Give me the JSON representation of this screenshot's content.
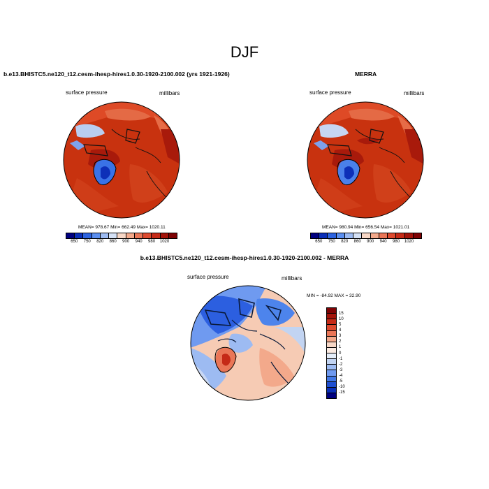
{
  "figure": {
    "title": "DJF"
  },
  "panels": {
    "model": {
      "title": "b.e13.BHISTC5.ne120_t12.cesm-ihesp-hires1.0.30-1920-2100.002 (yrs 1921-1926)",
      "left_label": "surface pressure",
      "right_label": "millibars",
      "stats": "MEAN= 978.67  Min= 662.49  Max= 1020.11"
    },
    "obs": {
      "title": "MERRA",
      "left_label": "surface pressure",
      "right_label": "millibars",
      "stats": "MEAN= 980.94  Min= 656.54  Max= 1021.01"
    },
    "diff": {
      "title": "b.e13.BHISTC5.ne120_t12.cesm-ihesp-hires1.0.30-1920-2100.002 - MERRA",
      "left_label": "surface pressure",
      "right_label": "millibars",
      "stats": "MIN = -84.92 MAX =  32.90"
    }
  },
  "colorbars": {
    "absolute": {
      "ticks": [
        "650",
        "750",
        "820",
        "860",
        "900",
        "940",
        "980",
        "1020"
      ],
      "colors": [
        "#00007f",
        "#0a2fb8",
        "#2c63e0",
        "#5b8ff0",
        "#9dbbf2",
        "#d5e1f5",
        "#f7d7c6",
        "#f3a98b",
        "#ea7657",
        "#dd4a2f",
        "#c52a17",
        "#a3130a",
        "#7e0204"
      ]
    },
    "difference": {
      "ticks": [
        "15",
        "10",
        "5",
        "4",
        "3",
        "2",
        "1",
        "0",
        "-1",
        "-2",
        "-3",
        "-4",
        "-5",
        "-10",
        "-15"
      ],
      "colors": [
        "#7e0204",
        "#a3130a",
        "#c52a17",
        "#dd4a2f",
        "#ea7657",
        "#f3a98b",
        "#f7d7c6",
        "#fbebe2",
        "#e5edf8",
        "#c2d4f2",
        "#9dbbf2",
        "#6f9af0",
        "#4278e6",
        "#1f4fd0",
        "#0a2fb8",
        "#00007f"
      ]
    }
  },
  "maps": {
    "projection": "north polar stereographic",
    "absolute_field_color": "#c8320f",
    "greenland_color": "#1540d6",
    "diff_background_color": "#f6cbb4"
  }
}
